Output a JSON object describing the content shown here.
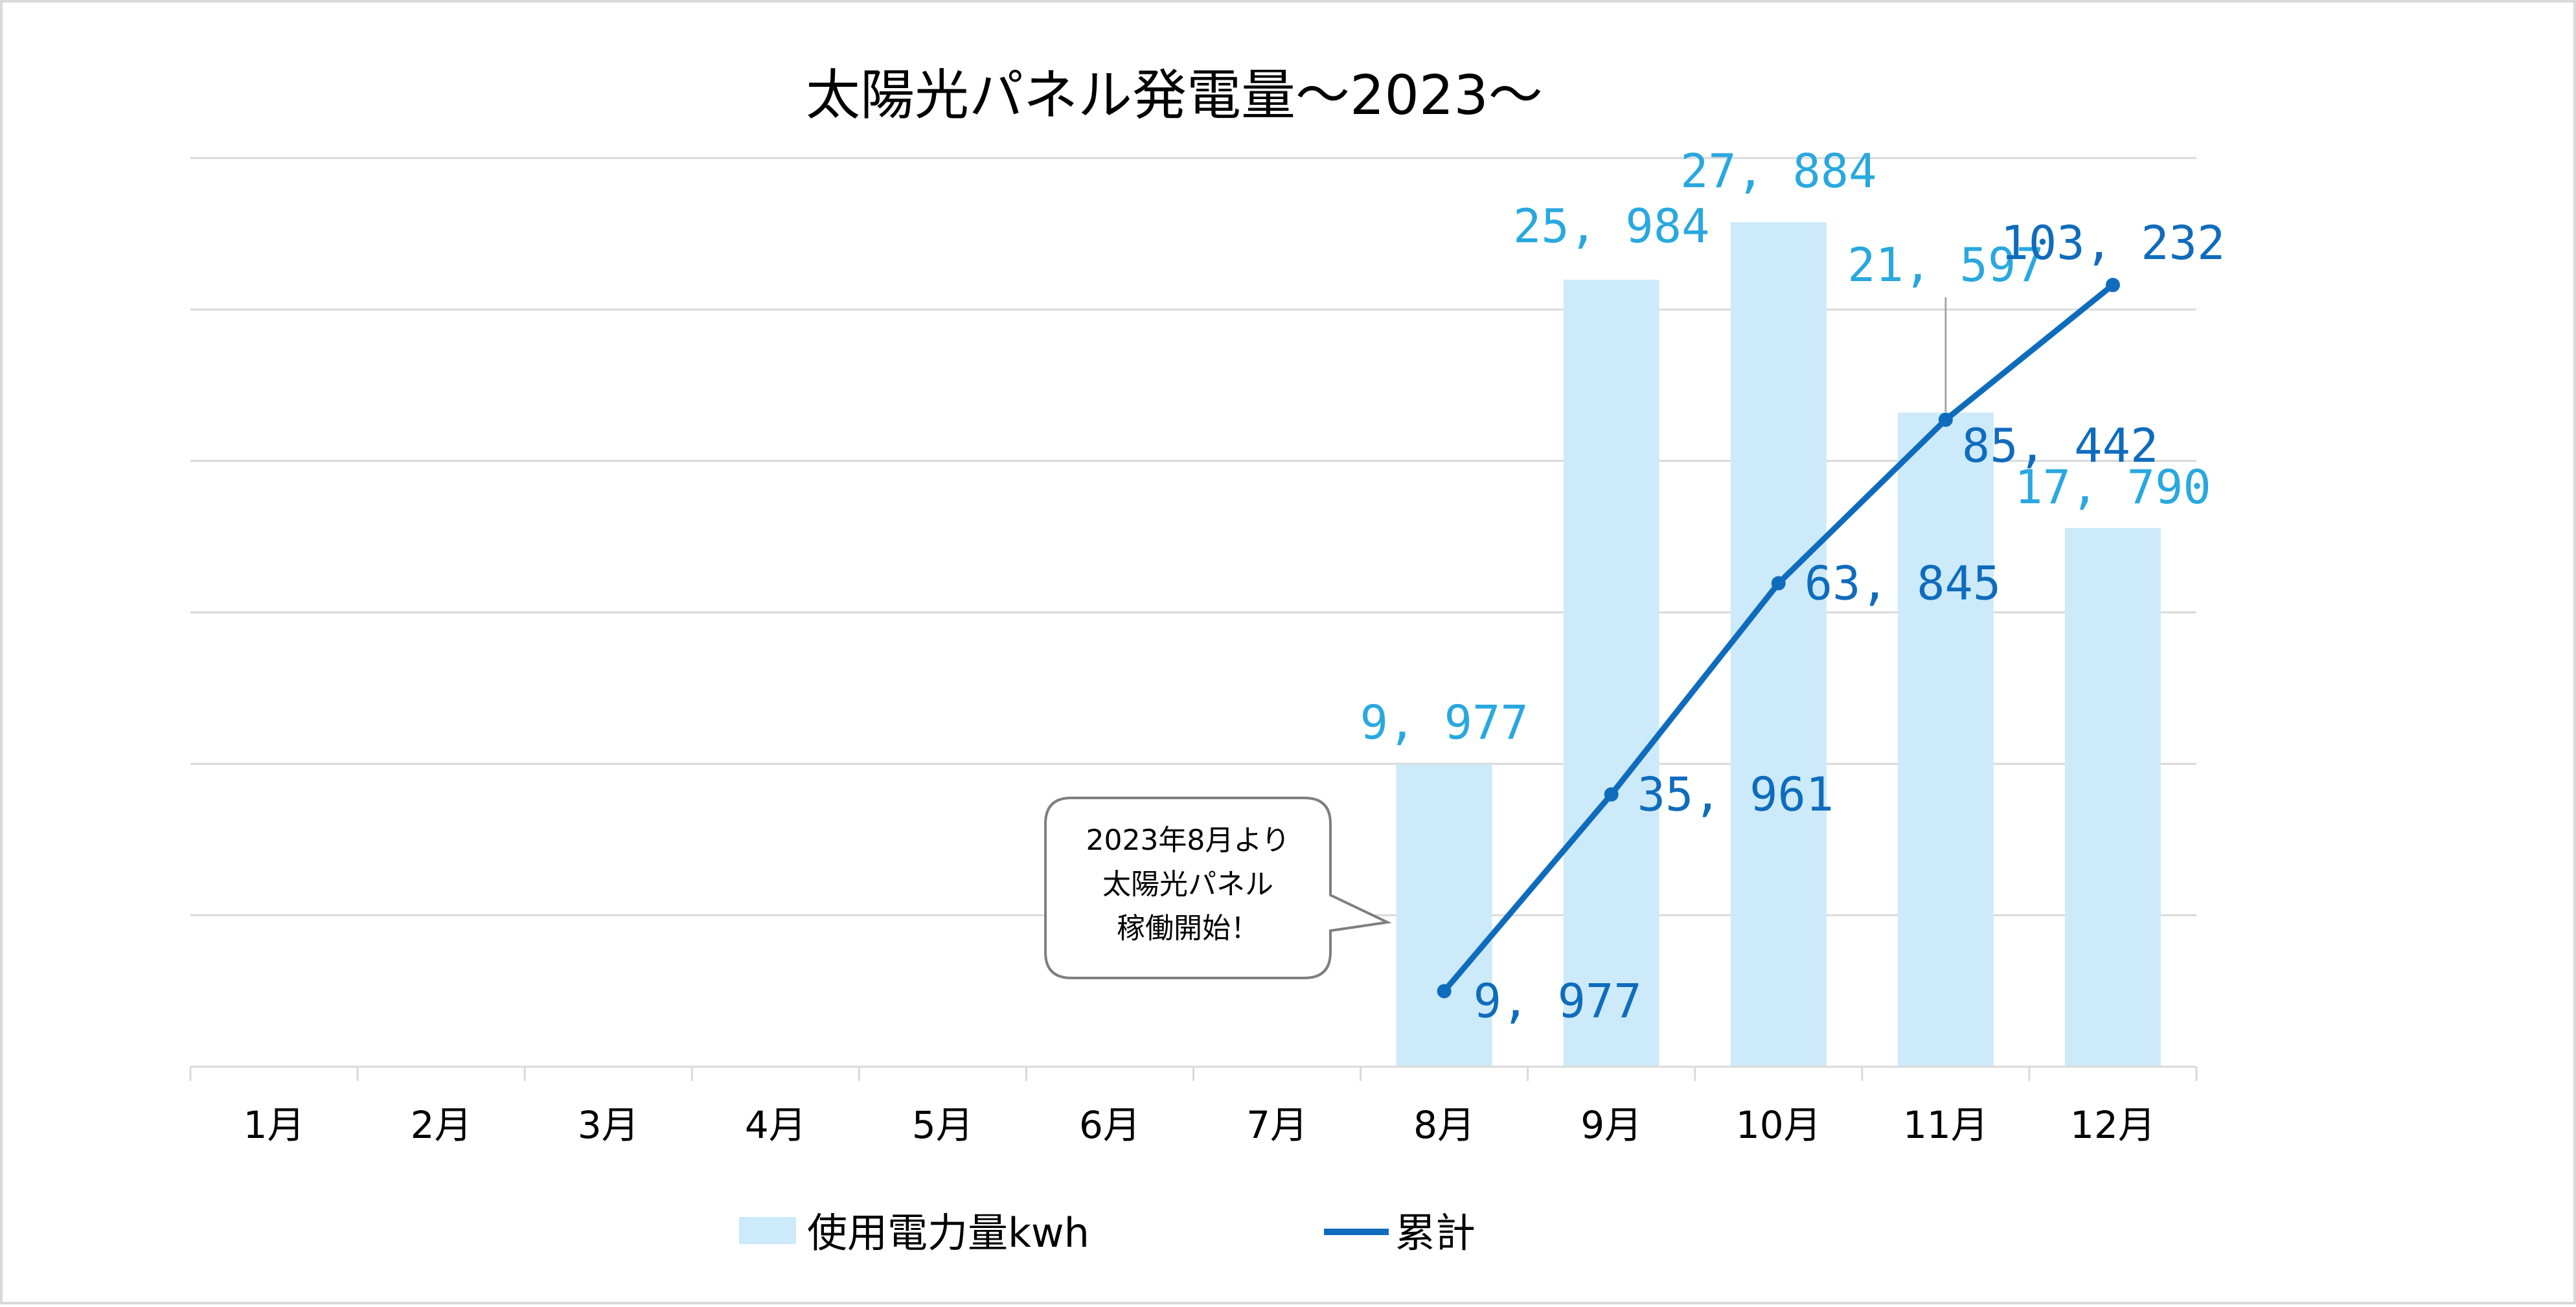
{
  "chart_data": {
    "type": "bar",
    "title": "太陽光パネル発電量〜2023〜",
    "categories": [
      "1月",
      "2月",
      "3月",
      "4月",
      "5月",
      "6月",
      "7月",
      "8月",
      "9月",
      "10月",
      "11月",
      "12月"
    ],
    "series": [
      {
        "name": "使用電力量kwh",
        "type": "bar",
        "color": "#cceaf9",
        "label_color": "#29a8df",
        "values": [
          null,
          null,
          null,
          null,
          null,
          null,
          null,
          9977,
          25984,
          27884,
          21597,
          17790
        ],
        "labels": [
          null,
          null,
          null,
          null,
          null,
          null,
          null,
          "9, 977",
          "25, 984",
          "27, 884",
          "21, 597",
          "17, 790"
        ]
      },
      {
        "name": "累計",
        "type": "line",
        "color": "#0f6cbd",
        "label_color": "#0f6cbd",
        "values": [
          null,
          null,
          null,
          null,
          null,
          null,
          null,
          9977,
          35961,
          63845,
          85442,
          103232
        ],
        "labels": [
          null,
          null,
          null,
          null,
          null,
          null,
          null,
          "9, 977",
          "35, 961",
          "63, 845",
          "85, 442",
          "103, 232"
        ]
      }
    ],
    "ylim": [
      0,
      30000
    ],
    "y2lim": [
      0,
      120000
    ],
    "grid": true,
    "legend": "bottom",
    "annotation": {
      "lines": [
        "2023年8月より",
        "太陽光パネル",
        "稼働開始！"
      ]
    }
  }
}
